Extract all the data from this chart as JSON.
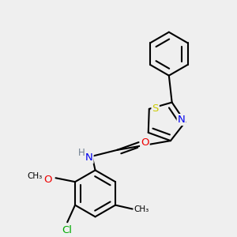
{
  "bg_color": "#efefef",
  "atom_colors": {
    "N": "#0000ee",
    "O": "#ee0000",
    "S": "#cccc00",
    "Cl": "#00aa00",
    "C": "#000000",
    "H": "#708090"
  },
  "bond_color": "#000000",
  "bond_width": 1.5,
  "font_size": 8.5,
  "fig_size": [
    3.0,
    3.0
  ],
  "dpi": 100
}
